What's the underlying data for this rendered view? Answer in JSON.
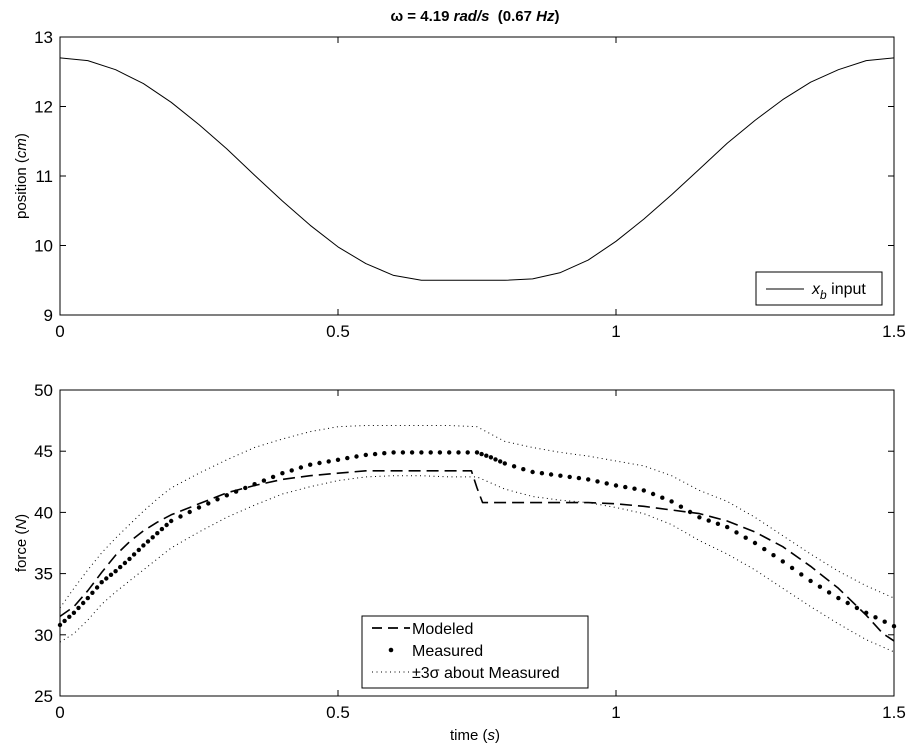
{
  "chart_data": [
    {
      "type": "line",
      "title": {
        "prefix": "ω = 4.19 ",
        "unit": "rad/s",
        "mid": "  (0.67 ",
        "unit2": "Hz",
        "suffix": ")"
      },
      "ylabel": {
        "text": "position (",
        "unit": "cm",
        "close": ")"
      },
      "xlabel": "",
      "xlim": [
        0,
        1.5
      ],
      "ylim": [
        9,
        13
      ],
      "xticks": [
        "0",
        "0.5",
        "1",
        "1.5"
      ],
      "yticks": [
        "9",
        "10",
        "11",
        "12",
        "13"
      ],
      "legend_position": "bottom-right",
      "series": [
        {
          "name": "x_b input",
          "legend": {
            "var": "x",
            "sub": "b",
            "text": " input"
          },
          "style": "solid",
          "x": [
            0,
            0.05,
            0.1,
            0.15,
            0.2,
            0.25,
            0.3,
            0.35,
            0.4,
            0.45,
            0.5,
            0.55,
            0.6,
            0.65,
            0.7,
            0.75,
            0.8,
            0.85,
            0.9,
            0.95,
            1.0,
            1.05,
            1.1,
            1.15,
            1.2,
            1.25,
            1.3,
            1.35,
            1.4,
            1.45,
            1.5
          ],
          "y": [
            12.7,
            12.66,
            12.53,
            12.33,
            12.06,
            11.74,
            11.39,
            11.01,
            10.64,
            10.29,
            9.98,
            9.74,
            9.57,
            9.5,
            9.5,
            9.5,
            9.5,
            9.52,
            9.61,
            9.79,
            10.06,
            10.38,
            10.73,
            11.1,
            11.47,
            11.8,
            12.1,
            12.35,
            12.53,
            12.66,
            12.7
          ]
        }
      ]
    },
    {
      "type": "line",
      "ylabel": {
        "text": "force (",
        "unit": "N",
        "close": ")"
      },
      "xlabel": {
        "text": "time (",
        "unit": "s",
        "close": ")"
      },
      "xlim": [
        0,
        1.5
      ],
      "ylim": [
        25,
        50
      ],
      "xticks": [
        "0",
        "0.5",
        "1",
        "1.5"
      ],
      "yticks": [
        "25",
        "30",
        "35",
        "40",
        "45",
        "50"
      ],
      "legend_position": "bottom-center",
      "series": [
        {
          "name": "Modeled",
          "style": "dashed",
          "x": [
            0,
            0.025,
            0.05,
            0.075,
            0.1,
            0.125,
            0.15,
            0.175,
            0.2,
            0.25,
            0.3,
            0.35,
            0.4,
            0.45,
            0.5,
            0.55,
            0.6,
            0.65,
            0.7,
            0.74,
            0.75,
            0.76,
            0.8,
            0.85,
            0.9,
            0.95,
            1.0,
            1.05,
            1.1,
            1.15,
            1.2,
            1.25,
            1.3,
            1.35,
            1.4,
            1.45,
            1.48,
            1.5
          ],
          "y": [
            31.5,
            32.3,
            33.6,
            35.1,
            36.5,
            37.6,
            38.5,
            39.2,
            39.8,
            40.7,
            41.6,
            42.2,
            42.7,
            43.0,
            43.2,
            43.4,
            43.4,
            43.4,
            43.4,
            43.4,
            42.0,
            40.8,
            40.8,
            40.8,
            40.8,
            40.8,
            40.7,
            40.5,
            40.2,
            39.9,
            39.3,
            38.4,
            37.2,
            35.6,
            33.8,
            31.6,
            30.1,
            29.5
          ]
        },
        {
          "name": "Measured",
          "style": "dots",
          "x": [
            0,
            0.025,
            0.05,
            0.075,
            0.1,
            0.125,
            0.15,
            0.175,
            0.2,
            0.25,
            0.3,
            0.35,
            0.4,
            0.45,
            0.5,
            0.55,
            0.6,
            0.65,
            0.7,
            0.75,
            0.775,
            0.8,
            0.85,
            0.9,
            0.95,
            1.0,
            1.05,
            1.1,
            1.15,
            1.2,
            1.25,
            1.3,
            1.35,
            1.4,
            1.45,
            1.5
          ],
          "y": [
            30.8,
            31.8,
            33.0,
            34.3,
            35.2,
            36.2,
            37.3,
            38.3,
            39.3,
            40.4,
            41.4,
            42.3,
            43.2,
            43.9,
            44.3,
            44.7,
            44.9,
            44.9,
            44.9,
            44.9,
            44.5,
            44.0,
            43.3,
            43.0,
            42.7,
            42.2,
            41.8,
            40.9,
            39.6,
            38.8,
            37.5,
            36.0,
            34.4,
            33.0,
            31.8,
            30.7
          ]
        },
        {
          "name": "±3σ about Measured",
          "style": "dotted",
          "upper": [
            32.2,
            33.8,
            35.3,
            36.7,
            37.9,
            39.0,
            40.1,
            41.1,
            42.0,
            43.2,
            44.3,
            45.3,
            46.0,
            46.6,
            47.0,
            47.1,
            47.1,
            47.1,
            47.1,
            47.0,
            46.4,
            45.8,
            45.3,
            44.9,
            44.6,
            44.2,
            43.8,
            43.0,
            41.8,
            40.9,
            39.6,
            38.1,
            36.6,
            35.2,
            34.0,
            33.0
          ],
          "lower": [
            29.4,
            30.1,
            31.2,
            32.5,
            33.5,
            34.4,
            35.3,
            36.2,
            37.1,
            38.4,
            39.6,
            40.6,
            41.5,
            42.1,
            42.6,
            42.9,
            43.0,
            43.0,
            42.9,
            42.9,
            42.4,
            41.9,
            41.3,
            41.0,
            40.8,
            40.4,
            39.9,
            39.0,
            37.7,
            36.6,
            35.3,
            33.8,
            32.3,
            30.9,
            29.6,
            28.6
          ]
        }
      ]
    }
  ]
}
